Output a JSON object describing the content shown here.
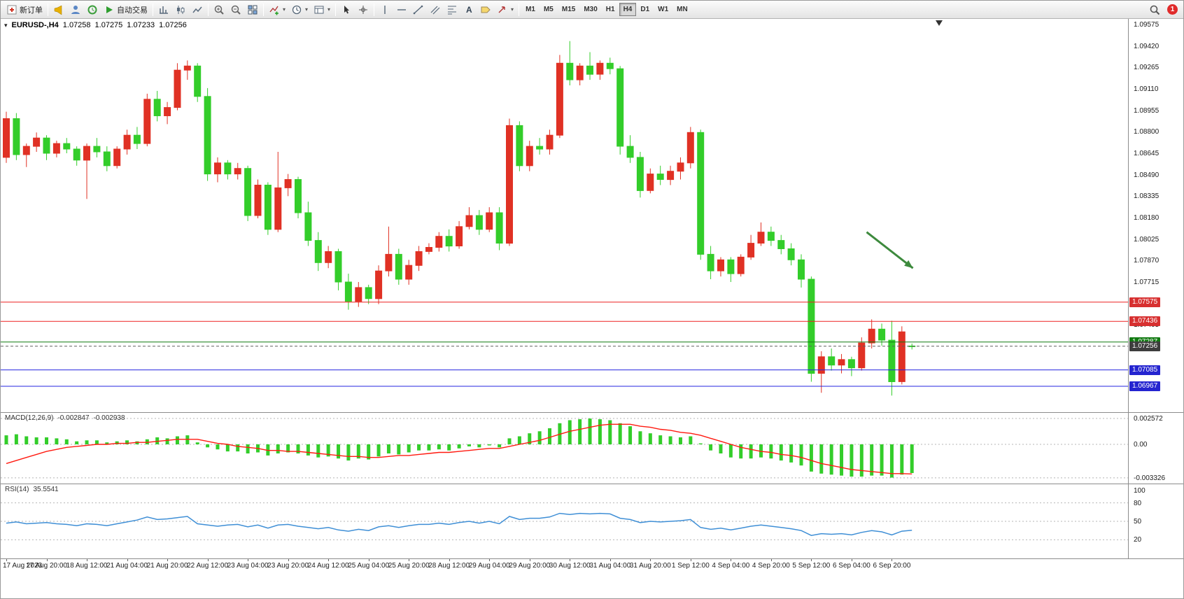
{
  "toolbar": {
    "items": [
      {
        "type": "button",
        "name": "new-order",
        "icon": "new-order-icon",
        "label": "新订单"
      },
      {
        "type": "sep"
      },
      {
        "type": "button",
        "name": "alerts",
        "icon": "megaphone-icon"
      },
      {
        "type": "button",
        "name": "community",
        "icon": "profile-icon"
      },
      {
        "type": "button",
        "name": "history-center",
        "icon": "history-icon"
      },
      {
        "type": "button",
        "name": "auto-trading",
        "icon": "autotrade-icon",
        "label": "自动交易"
      },
      {
        "type": "sep"
      },
      {
        "type": "button",
        "name": "bar-chart-mode",
        "icon": "bar-chart-icon"
      },
      {
        "type": "button",
        "name": "candlestick-mode",
        "icon": "candlestick-icon"
      },
      {
        "type": "button",
        "name": "line-chart-mode",
        "icon": "line-chart-icon"
      },
      {
        "type": "sep"
      },
      {
        "type": "button",
        "name": "zoom-in",
        "icon": "zoom-in-icon"
      },
      {
        "type": "button",
        "name": "zoom-out",
        "icon": "zoom-out-icon"
      },
      {
        "type": "button",
        "name": "tile-windows",
        "icon": "tile-windows-icon"
      },
      {
        "type": "sep"
      },
      {
        "type": "button",
        "name": "indicators",
        "icon": "indicators-icon",
        "caret": true
      },
      {
        "type": "button",
        "name": "periods",
        "icon": "clock-icon",
        "caret": true
      },
      {
        "type": "button",
        "name": "templates",
        "icon": "template-icon",
        "caret": true
      },
      {
        "type": "sep"
      },
      {
        "type": "button",
        "name": "cursor",
        "icon": "cursor-icon"
      },
      {
        "type": "button",
        "name": "crosshair",
        "icon": "crosshair-icon"
      },
      {
        "type": "sep"
      },
      {
        "type": "button",
        "name": "vertical-line",
        "icon": "vline-icon"
      },
      {
        "type": "button",
        "name": "horizontal-line",
        "icon": "hline-icon"
      },
      {
        "type": "button",
        "name": "trendline",
        "icon": "trendline-icon"
      },
      {
        "type": "button",
        "name": "equidistant-channel",
        "icon": "channel-icon"
      },
      {
        "type": "button",
        "name": "fibonacci",
        "icon": "fibo-icon"
      },
      {
        "type": "button",
        "name": "text",
        "icon": "text-icon"
      },
      {
        "type": "button",
        "name": "text-label",
        "icon": "label-icon"
      },
      {
        "type": "button",
        "name": "arrows",
        "icon": "shapes-icon",
        "caret": true
      },
      {
        "type": "sep"
      }
    ],
    "timeframes": [
      "M1",
      "M5",
      "M15",
      "M30",
      "H1",
      "H4",
      "D1",
      "W1",
      "MN"
    ],
    "active_timeframe": "H4",
    "notification_count": "1"
  },
  "chart_data": {
    "type": "candlestick",
    "symbol": "EURUSD-,H4",
    "timeframe": "H4",
    "ohlc": {
      "open": "1.07258",
      "high": "1.07275",
      "low": "1.07233",
      "close": "1.07256"
    },
    "ylim": [
      1.0678,
      1.0962
    ],
    "price_scale": {
      "first": 1.09575,
      "step": 0.00155,
      "decimals": 5
    },
    "colors": {
      "bull": "#e03124",
      "bear": "#33cd2a",
      "macd_hist": "#33cd2a",
      "macd_signal": "#ff1a10",
      "rsi_line": "#3f8fd6",
      "grid_dotted": "#b5b5b5",
      "arrow": "#3d8a3d"
    },
    "candles": [
      [
        1.0862,
        1.0895,
        1.0858,
        1.089
      ],
      [
        1.089,
        1.0894,
        1.086,
        1.0864
      ],
      [
        1.0864,
        1.0872,
        1.0855,
        1.087
      ],
      [
        1.087,
        1.088,
        1.0866,
        1.0876
      ],
      [
        1.0876,
        1.0878,
        1.086,
        1.0865
      ],
      [
        1.0865,
        1.0874,
        1.0862,
        1.0872
      ],
      [
        1.0872,
        1.0876,
        1.0865,
        1.0868
      ],
      [
        1.0868,
        1.087,
        1.0856,
        1.086
      ],
      [
        1.086,
        1.0872,
        1.0832,
        1.087
      ],
      [
        1.087,
        1.0876,
        1.0862,
        1.0866
      ],
      [
        1.0866,
        1.087,
        1.0852,
        1.0856
      ],
      [
        1.0856,
        1.087,
        1.0854,
        1.0868
      ],
      [
        1.0868,
        1.0882,
        1.0864,
        1.0878
      ],
      [
        1.0878,
        1.0884,
        1.0868,
        1.0872
      ],
      [
        1.0872,
        1.0908,
        1.087,
        1.0904
      ],
      [
        1.0904,
        1.091,
        1.0888,
        1.0892
      ],
      [
        1.0892,
        1.0902,
        1.0886,
        1.0898
      ],
      [
        1.0898,
        1.093,
        1.0896,
        1.0925
      ],
      [
        1.0925,
        1.0932,
        1.0918,
        1.0928
      ],
      [
        1.0928,
        1.093,
        1.0902,
        1.0906
      ],
      [
        1.0906,
        1.0912,
        1.0845,
        1.085
      ],
      [
        1.085,
        1.0862,
        1.0844,
        1.0858
      ],
      [
        1.0858,
        1.086,
        1.0846,
        1.085
      ],
      [
        1.085,
        1.0858,
        1.0846,
        1.0854
      ],
      [
        1.0854,
        1.0856,
        1.0816,
        1.082
      ],
      [
        1.082,
        1.0846,
        1.0818,
        1.0842
      ],
      [
        1.0842,
        1.0844,
        1.0806,
        1.081
      ],
      [
        1.081,
        1.0866,
        1.0808,
        1.084
      ],
      [
        1.084,
        1.085,
        1.0834,
        1.0846
      ],
      [
        1.0846,
        1.0848,
        1.0818,
        1.0822
      ],
      [
        1.0822,
        1.083,
        1.0798,
        1.0802
      ],
      [
        1.0802,
        1.0808,
        1.078,
        1.0786
      ],
      [
        1.0786,
        1.0798,
        1.0782,
        1.0794
      ],
      [
        1.0794,
        1.0796,
        1.0766,
        1.0772
      ],
      [
        1.0772,
        1.0778,
        1.0752,
        1.0758
      ],
      [
        1.0758,
        1.0772,
        1.0754,
        1.0768
      ],
      [
        1.0768,
        1.077,
        1.0756,
        1.076
      ],
      [
        1.076,
        1.0784,
        1.0756,
        1.078
      ],
      [
        1.078,
        1.0812,
        1.0776,
        1.0792
      ],
      [
        1.0792,
        1.0796,
        1.077,
        1.0774
      ],
      [
        1.0774,
        1.0788,
        1.077,
        1.0784
      ],
      [
        1.0784,
        1.0798,
        1.078,
        1.0794
      ],
      [
        1.0794,
        1.08,
        1.0792,
        1.0797
      ],
      [
        1.0797,
        1.0808,
        1.0794,
        1.0805
      ],
      [
        1.0805,
        1.081,
        1.0794,
        1.0798
      ],
      [
        1.0798,
        1.0816,
        1.0796,
        1.0812
      ],
      [
        1.0812,
        1.0826,
        1.081,
        1.082
      ],
      [
        1.082,
        1.0824,
        1.0806,
        1.081
      ],
      [
        1.081,
        1.0826,
        1.0808,
        1.0822
      ],
      [
        1.0822,
        1.0826,
        1.0795,
        1.08
      ],
      [
        1.08,
        1.089,
        1.0798,
        1.0885
      ],
      [
        1.0885,
        1.0888,
        1.0852,
        1.0856
      ],
      [
        1.0856,
        1.0874,
        1.0852,
        1.087
      ],
      [
        1.087,
        1.0876,
        1.0864,
        1.0868
      ],
      [
        1.0868,
        1.0882,
        1.0864,
        1.0878
      ],
      [
        1.0878,
        1.0936,
        1.0876,
        1.093
      ],
      [
        1.093,
        1.0946,
        1.0914,
        1.0918
      ],
      [
        1.0918,
        1.093,
        1.0914,
        1.0928
      ],
      [
        1.0928,
        1.0938,
        1.0918,
        1.0922
      ],
      [
        1.0922,
        1.0932,
        1.0918,
        1.093
      ],
      [
        1.093,
        1.0934,
        1.0922,
        1.0926
      ],
      [
        1.0926,
        1.0928,
        1.0864,
        1.087
      ],
      [
        1.087,
        1.0878,
        1.0858,
        1.0862
      ],
      [
        1.0862,
        1.0866,
        1.0833,
        1.0838
      ],
      [
        1.0838,
        1.0854,
        1.0836,
        1.085
      ],
      [
        1.085,
        1.0856,
        1.0842,
        1.0846
      ],
      [
        1.0846,
        1.0856,
        1.0842,
        1.0852
      ],
      [
        1.0852,
        1.0862,
        1.0846,
        1.0858
      ],
      [
        1.0858,
        1.0884,
        1.0854,
        1.088
      ],
      [
        1.088,
        1.0882,
        1.0788,
        1.0792
      ],
      [
        1.0792,
        1.0798,
        1.0774,
        1.078
      ],
      [
        1.078,
        1.079,
        1.0776,
        1.0788
      ],
      [
        1.0788,
        1.079,
        1.0772,
        1.0778
      ],
      [
        1.0778,
        1.0792,
        1.0776,
        1.079
      ],
      [
        1.079,
        1.0806,
        1.0788,
        1.08
      ],
      [
        1.08,
        1.0815,
        1.0798,
        1.0808
      ],
      [
        1.0808,
        1.0812,
        1.0798,
        1.0802
      ],
      [
        1.0802,
        1.0806,
        1.0792,
        1.0796
      ],
      [
        1.0796,
        1.08,
        1.0784,
        1.0788
      ],
      [
        1.0788,
        1.0792,
        1.0768,
        1.0774
      ],
      [
        1.0774,
        1.0776,
        1.07,
        1.0706
      ],
      [
        1.0706,
        1.0722,
        1.0692,
        1.0718
      ],
      [
        1.0718,
        1.0724,
        1.0708,
        1.0712
      ],
      [
        1.0712,
        1.072,
        1.0706,
        1.0716
      ],
      [
        1.0716,
        1.0718,
        1.0704,
        1.071
      ],
      [
        1.071,
        1.0732,
        1.0708,
        1.0728
      ],
      [
        1.0728,
        1.0745,
        1.0724,
        1.0738
      ],
      [
        1.0738,
        1.0742,
        1.0726,
        1.073
      ],
      [
        1.073,
        1.0744,
        1.069,
        1.07
      ],
      [
        1.07,
        1.074,
        1.0698,
        1.0736
      ],
      [
        1.07258,
        1.07275,
        1.07233,
        1.07256
      ]
    ],
    "levels": [
      {
        "price": 1.07575,
        "label": "1.07575",
        "color": "#ee2222",
        "badge_bg": "#d73030",
        "style": "solid"
      },
      {
        "price": 1.07436,
        "label": "1.07436",
        "color": "#ee2222",
        "badge_bg": "#d73030",
        "style": "solid"
      },
      {
        "price": 1.07287,
        "label": "1.07287",
        "color": "#117a11",
        "badge_bg": "#117a11",
        "style": "solid"
      },
      {
        "price": 1.07256,
        "label": "1.07256",
        "color": "#606060",
        "badge_bg": "#3d3d3d",
        "style": "dashed"
      },
      {
        "price": 1.07085,
        "label": "1.07085",
        "color": "#2424e0",
        "badge_bg": "#2424d0",
        "style": "solid"
      },
      {
        "price": 1.06967,
        "label": "1.06967",
        "color": "#2424e0",
        "badge_bg": "#2424d0",
        "style": "solid"
      }
    ],
    "annotation_arrow": {
      "x1_candle": 85.5,
      "y1_price": 1.0808,
      "x2_candle": 90.1,
      "y2_price": 1.0782
    },
    "macd": {
      "label": "MACD(12,26,9)",
      "value_display": "-0.002847",
      "signal_display": "-0.002938",
      "ylim": [
        -0.00389,
        0.00313
      ],
      "scale_marks": [
        {
          "value": 0.002572,
          "label": "0.002572"
        },
        {
          "value": 0,
          "label": "0.00"
        },
        {
          "value": -0.003326,
          "label": "-0.003326"
        }
      ],
      "values": [
        0.0009,
        0.001,
        0.0008,
        0.0007,
        0.0007,
        0.0006,
        0.0005,
        0.0003,
        0.0004,
        0.0004,
        0.0002,
        0.0003,
        0.0004,
        0.0003,
        0.0005,
        0.0007,
        0.0006,
        0.0008,
        0.0009,
        0.0002,
        -0.0003,
        -0.0005,
        -0.0007,
        -0.0007,
        -0.0009,
        -0.0008,
        -0.0011,
        -0.0009,
        -0.0008,
        -0.0009,
        -0.0011,
        -0.0013,
        -0.0012,
        -0.0014,
        -0.0016,
        -0.0014,
        -0.0015,
        -0.0012,
        -0.0009,
        -0.001,
        -0.0008,
        -0.0006,
        -0.0006,
        -0.0005,
        -0.0006,
        -0.0004,
        -0.0002,
        -0.0003,
        -0.0001,
        -0.0003,
        0.0006,
        0.0008,
        0.0011,
        0.0013,
        0.0016,
        0.0021,
        0.0024,
        0.0025,
        0.00257,
        0.0025,
        0.0024,
        0.0021,
        0.0018,
        0.0013,
        0.0011,
        0.0009,
        0.0008,
        0.0007,
        0.0008,
        0.0001,
        -0.0006,
        -0.0009,
        -0.0013,
        -0.0014,
        -0.0014,
        -0.0013,
        -0.0014,
        -0.0016,
        -0.0018,
        -0.0021,
        -0.0027,
        -0.0029,
        -0.003,
        -0.0031,
        -0.0032,
        -0.0032,
        -0.0031,
        -0.0031,
        -0.0033,
        -0.003,
        -0.002847
      ],
      "signal": [
        -0.0019,
        -0.0016,
        -0.0013,
        -0.001,
        -0.0007,
        -0.0005,
        -0.0003,
        -0.0002,
        -0.0001,
        0.0,
        0.0,
        0.0001,
        0.0001,
        0.0002,
        0.0002,
        0.0003,
        0.0004,
        0.0005,
        0.0005,
        0.0005,
        0.0003,
        0.0001,
        0.0,
        -0.0002,
        -0.0003,
        -0.0004,
        -0.0006,
        -0.0006,
        -0.0007,
        -0.0007,
        -0.0008,
        -0.0009,
        -0.001,
        -0.0011,
        -0.0012,
        -0.0012,
        -0.0013,
        -0.0013,
        -0.0012,
        -0.0011,
        -0.0011,
        -0.001,
        -0.0009,
        -0.0008,
        -0.0008,
        -0.0007,
        -0.0006,
        -0.0005,
        -0.0004,
        -0.0004,
        -0.0002,
        0.0,
        0.0002,
        0.0004,
        0.0007,
        0.001,
        0.0013,
        0.0015,
        0.0017,
        0.0019,
        0.002,
        0.002,
        0.002,
        0.0018,
        0.0017,
        0.0015,
        0.0014,
        0.0012,
        0.0011,
        0.0009,
        0.0006,
        0.0003,
        0.0,
        -0.0003,
        -0.0005,
        -0.0007,
        -0.0008,
        -0.001,
        -0.0011,
        -0.0013,
        -0.0016,
        -0.0019,
        -0.0021,
        -0.0023,
        -0.0025,
        -0.0026,
        -0.0027,
        -0.0028,
        -0.0029,
        -0.0029,
        -0.002938
      ]
    },
    "rsi": {
      "label": "RSI(14)",
      "value_display": "35.5541",
      "scale_marks": [
        {
          "value": 100,
          "label": "100",
          "line": false
        },
        {
          "value": 80,
          "label": "80",
          "line": true
        },
        {
          "value": 50,
          "label": "50",
          "line": true
        },
        {
          "value": 20,
          "label": "20",
          "line": true
        }
      ],
      "values": [
        47,
        49,
        46,
        47,
        48,
        46,
        45,
        43,
        46,
        45,
        43,
        46,
        49,
        52,
        57,
        53,
        54,
        56,
        58,
        46,
        44,
        42,
        44,
        45,
        41,
        44,
        39,
        44,
        45,
        42,
        40,
        38,
        40,
        36,
        34,
        37,
        35,
        41,
        43,
        40,
        43,
        45,
        45,
        47,
        45,
        48,
        50,
        47,
        50,
        46,
        58,
        53,
        55,
        55,
        57,
        63,
        61,
        63,
        62,
        63,
        62,
        55,
        53,
        48,
        50,
        49,
        50,
        51,
        53,
        40,
        37,
        39,
        36,
        39,
        42,
        44,
        42,
        40,
        38,
        35,
        27,
        30,
        29,
        30,
        28,
        32,
        35,
        33,
        28,
        34,
        35.5541
      ]
    },
    "time_axis": {
      "step_candles": 4,
      "labels": [
        "17 Aug 2023",
        "17 Aug 20:00",
        "18 Aug 12:00",
        "21 Aug 04:00",
        "21 Aug 20:00",
        "22 Aug 12:00",
        "23 Aug 04:00",
        "23 Aug 20:00",
        "24 Aug 12:00",
        "25 Aug 04:00",
        "25 Aug 20:00",
        "28 Aug 12:00",
        "29 Aug 04:00",
        "29 Aug 20:00",
        "30 Aug 12:00",
        "31 Aug 04:00",
        "31 Aug 20:00",
        "1 Sep 12:00",
        "4 Sep 04:00",
        "4 Sep 20:00",
        "5 Sep 12:00",
        "6 Sep 04:00",
        "6 Sep 20:00"
      ]
    }
  }
}
